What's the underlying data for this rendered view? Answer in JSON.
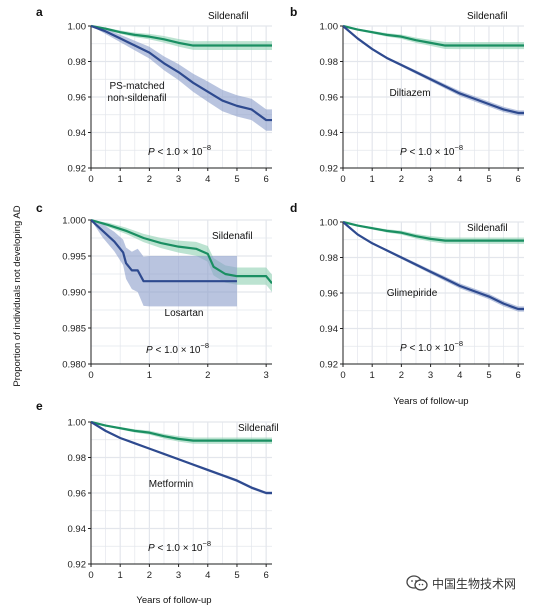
{
  "figure": {
    "y_axis_label": "Proportion of individuals not developing AD",
    "x_axis_label": "Years of follow-up",
    "watermark_text": "中国生物技术网"
  },
  "colors": {
    "sildenafil": "#1a8f62",
    "sildenafil_band": "#8fd1b3",
    "comparator": "#2e4a8f",
    "comparator_band": "#8a9cc9",
    "grid": "#e3e6ec"
  },
  "chart_data": [
    {
      "id": "a",
      "panel_label": "a",
      "type": "line",
      "xlim": [
        0,
        6.2
      ],
      "ylim": [
        0.92,
        1.0
      ],
      "xticks": [
        "0",
        "1",
        "2",
        "3",
        "4",
        "5",
        "6"
      ],
      "yticks": [
        "0.92",
        "0.94",
        "0.96",
        "0.98",
        "1.00"
      ],
      "x_axis_label": "",
      "sildenafil_label": "Sildenafil",
      "comparator_label": "PS-matched\nnon-sildenafil",
      "p_value_text": "P < 1.0 × 10",
      "p_value_exp": "−8",
      "series": [
        {
          "name": "Sildenafil",
          "x": [
            0,
            0.5,
            1,
            1.5,
            2,
            2.5,
            3,
            3.5,
            4,
            5,
            6,
            6.2
          ],
          "y": [
            1.0,
            0.9985,
            0.9965,
            0.995,
            0.994,
            0.9925,
            0.9905,
            0.989,
            0.989,
            0.989,
            0.989,
            0.989
          ],
          "band": 0.0025
        },
        {
          "name": "PS-matched non-sildenafil",
          "x": [
            0,
            0.5,
            1,
            1.5,
            2,
            2.5,
            3,
            3.5,
            4,
            4.5,
            5,
            5.5,
            6,
            6.2
          ],
          "y": [
            1.0,
            0.997,
            0.993,
            0.989,
            0.985,
            0.979,
            0.974,
            0.968,
            0.963,
            0.958,
            0.955,
            0.953,
            0.947,
            0.947
          ],
          "band": 0.006
        }
      ]
    },
    {
      "id": "b",
      "panel_label": "b",
      "type": "line",
      "xlim": [
        0,
        6.2
      ],
      "ylim": [
        0.92,
        1.0
      ],
      "xticks": [
        "0",
        "1",
        "2",
        "3",
        "4",
        "5",
        "6"
      ],
      "yticks": [
        "0.92",
        "0.94",
        "0.96",
        "0.98",
        "1.00"
      ],
      "x_axis_label": "",
      "sildenafil_label": "Sildenafil",
      "comparator_label": "Diltiazem",
      "p_value_text": "P < 1.0 × 10",
      "p_value_exp": "−8",
      "series": [
        {
          "name": "Sildenafil",
          "x": [
            0,
            0.5,
            1,
            1.5,
            2,
            2.5,
            3,
            3.5,
            4,
            5,
            6,
            6.2
          ],
          "y": [
            1.0,
            0.998,
            0.9965,
            0.995,
            0.994,
            0.992,
            0.9905,
            0.989,
            0.989,
            0.989,
            0.989,
            0.989
          ],
          "band": 0.002
        },
        {
          "name": "Diltiazem",
          "x": [
            0,
            0.5,
            1,
            1.5,
            2,
            2.5,
            3,
            3.5,
            4,
            4.5,
            5,
            5.5,
            6,
            6.2
          ],
          "y": [
            1.0,
            0.993,
            0.987,
            0.982,
            0.978,
            0.974,
            0.97,
            0.966,
            0.962,
            0.959,
            0.956,
            0.953,
            0.951,
            0.951
          ],
          "band": 0.0015
        }
      ]
    },
    {
      "id": "c",
      "panel_label": "c",
      "type": "line",
      "xlim": [
        0,
        3.1
      ],
      "ylim": [
        0.98,
        1.0
      ],
      "xticks": [
        "0",
        "1",
        "2",
        "3"
      ],
      "yticks": [
        "0.980",
        "0.985",
        "0.990",
        "0.995",
        "1.000"
      ],
      "x_axis_label": "",
      "sildenafil_label": "Sildenafil",
      "comparator_label": "Losartan",
      "p_value_text": "P < 1.0 × 10",
      "p_value_exp": "−8",
      "series": [
        {
          "name": "Sildenafil",
          "x": [
            0,
            0.3,
            0.6,
            0.9,
            1.2,
            1.5,
            1.8,
            2.0,
            2.1,
            2.3,
            2.5,
            3.0,
            3.1
          ],
          "y": [
            1.0,
            0.9993,
            0.9985,
            0.9975,
            0.9968,
            0.9963,
            0.996,
            0.9953,
            0.9935,
            0.9925,
            0.9922,
            0.9922,
            0.9912
          ],
          "band": 0.0012
        },
        {
          "name": "Losartan",
          "x": [
            0,
            0.2,
            0.4,
            0.55,
            0.6,
            0.7,
            0.8,
            0.9,
            1.0,
            1.5,
            2.0,
            2.5
          ],
          "y": [
            1.0,
            0.9985,
            0.997,
            0.9955,
            0.994,
            0.993,
            0.993,
            0.9915,
            0.9915,
            0.9915,
            0.9915,
            0.9915
          ],
          "band": 0.0035
        }
      ]
    },
    {
      "id": "d",
      "panel_label": "d",
      "type": "line",
      "xlim": [
        0,
        6.2
      ],
      "ylim": [
        0.92,
        1.0
      ],
      "xticks": [
        "0",
        "1",
        "2",
        "3",
        "4",
        "5",
        "6"
      ],
      "yticks": [
        "0.92",
        "0.94",
        "0.96",
        "0.98",
        "1.00"
      ],
      "x_axis_label": "Years of follow-up",
      "sildenafil_label": "Sildenafil",
      "comparator_label": "Glimepiride",
      "p_value_text": "P < 1.0 × 10",
      "p_value_exp": "−8",
      "series": [
        {
          "name": "Sildenafil",
          "x": [
            0,
            0.5,
            1,
            1.5,
            2,
            2.5,
            3,
            3.5,
            4,
            5,
            6,
            6.2
          ],
          "y": [
            1.0,
            0.998,
            0.9965,
            0.995,
            0.994,
            0.992,
            0.9905,
            0.9895,
            0.9895,
            0.9895,
            0.9895,
            0.9895
          ],
          "band": 0.0018
        },
        {
          "name": "Glimepiride",
          "x": [
            0,
            0.5,
            1,
            1.5,
            2,
            2.5,
            3,
            3.5,
            4,
            4.5,
            5,
            5.5,
            6,
            6.2
          ],
          "y": [
            1.0,
            0.993,
            0.988,
            0.984,
            0.98,
            0.976,
            0.972,
            0.968,
            0.964,
            0.961,
            0.958,
            0.954,
            0.951,
            0.951
          ],
          "band": 0.0015
        }
      ]
    },
    {
      "id": "e",
      "panel_label": "e",
      "type": "line",
      "xlim": [
        0,
        6.2
      ],
      "ylim": [
        0.92,
        1.0
      ],
      "xticks": [
        "0",
        "1",
        "2",
        "3",
        "4",
        "5",
        "6"
      ],
      "yticks": [
        "0.92",
        "0.94",
        "0.96",
        "0.98",
        "1.00"
      ],
      "x_axis_label": "Years of follow-up",
      "sildenafil_label": "Sildenafil",
      "comparator_label": "Metformin",
      "p_value_text": "P < 1.0 × 10",
      "p_value_exp": "−8",
      "series": [
        {
          "name": "Sildenafil",
          "x": [
            0,
            0.5,
            1,
            1.5,
            2,
            2.5,
            3,
            3.5,
            4,
            5,
            6,
            6.2
          ],
          "y": [
            1.0,
            0.998,
            0.9965,
            0.995,
            0.994,
            0.992,
            0.9905,
            0.9895,
            0.9895,
            0.9895,
            0.9895,
            0.9895
          ],
          "band": 0.0018
        },
        {
          "name": "Metformin",
          "x": [
            0,
            0.5,
            1,
            1.5,
            2,
            2.5,
            3,
            3.5,
            4,
            4.5,
            5,
            5.5,
            6,
            6.2
          ],
          "y": [
            1.0,
            0.995,
            0.991,
            0.988,
            0.985,
            0.982,
            0.979,
            0.976,
            0.973,
            0.97,
            0.967,
            0.963,
            0.96,
            0.96
          ],
          "band": 0.0008
        }
      ]
    }
  ]
}
